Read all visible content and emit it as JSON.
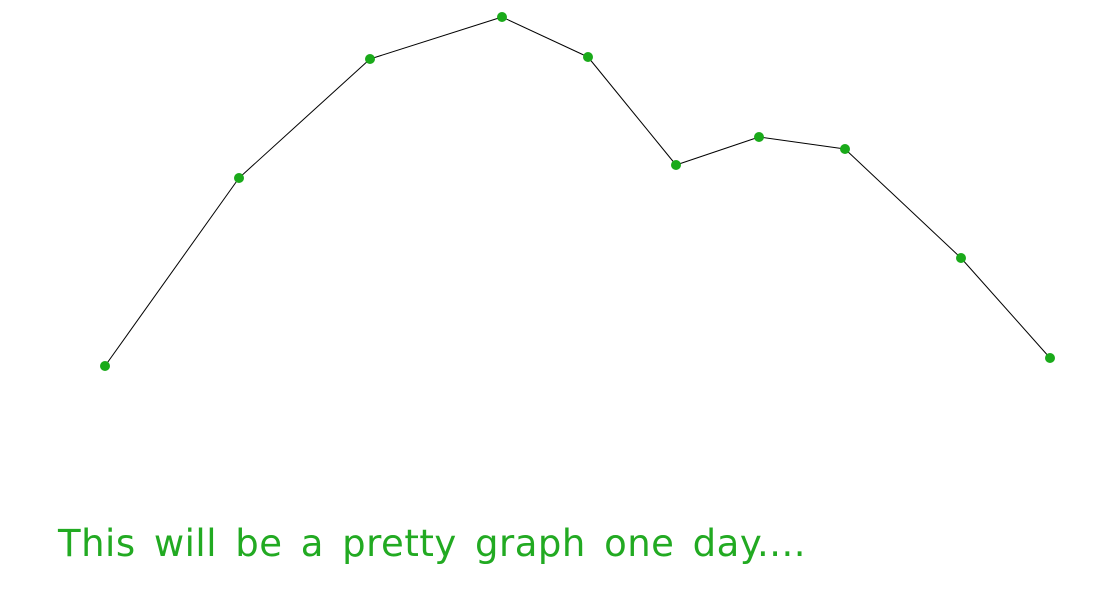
{
  "chart_data": {
    "type": "line",
    "title": "",
    "xlabel": "",
    "ylabel": "",
    "grid": false,
    "x": [
      105,
      239,
      370,
      502,
      588,
      676,
      759,
      845,
      961,
      1050
    ],
    "values": [
      366,
      178,
      59,
      17,
      57,
      165,
      137,
      149,
      258,
      358
    ],
    "line_color": "#000000",
    "marker_color": "#1aaa1a"
  },
  "caption": {
    "text": "This will be a pretty graph one day....",
    "color": "#22aa22"
  }
}
